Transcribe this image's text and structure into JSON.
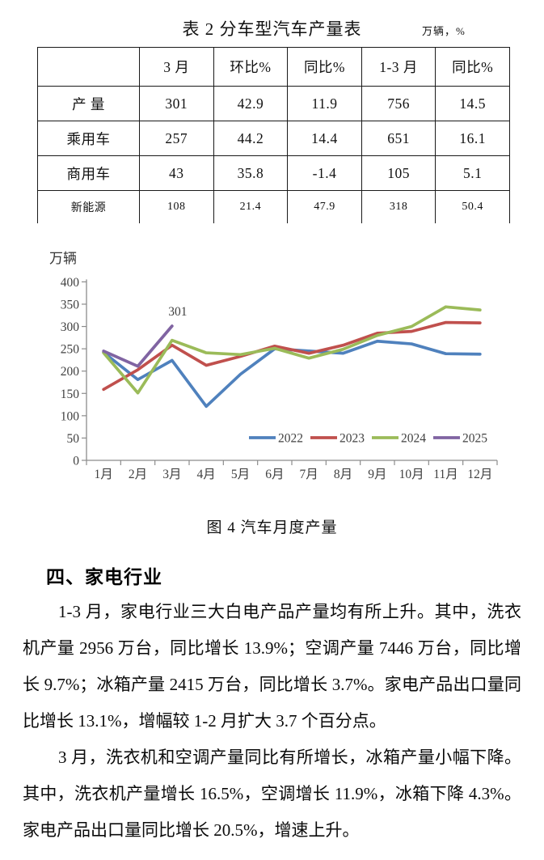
{
  "table": {
    "title": "表 2 分车型汽车产量表",
    "unit": "万辆，%",
    "columns": [
      "",
      "3 月",
      "环比%",
      "同比%",
      "1-3 月",
      "同比%"
    ],
    "rows": [
      {
        "label": "产 量",
        "values": [
          "301",
          "42.9",
          "11.9",
          "756",
          "14.5"
        ],
        "small": false
      },
      {
        "label": "乘用车",
        "values": [
          "257",
          "44.2",
          "14.4",
          "651",
          "16.1"
        ],
        "small": false
      },
      {
        "label": "商用车",
        "values": [
          "43",
          "35.8",
          "-1.4",
          "105",
          "5.1"
        ],
        "small": false
      },
      {
        "label": "新能源",
        "values": [
          "108",
          "21.4",
          "47.9",
          "318",
          "50.4"
        ],
        "small": true
      }
    ]
  },
  "chart_data": {
    "type": "line",
    "title": "",
    "unit_label": "万辆",
    "xlabel": "",
    "ylabel": "万辆",
    "categories": [
      "1月",
      "2月",
      "3月",
      "4月",
      "5月",
      "6月",
      "7月",
      "8月",
      "9月",
      "10月",
      "11月",
      "12月"
    ],
    "series": [
      {
        "name": "2022",
        "color": "#4F81BD",
        "values": [
          242,
          181,
          224,
          121,
          193,
          250,
          245,
          240,
          267,
          261,
          239,
          238
        ]
      },
      {
        "name": "2023",
        "color": "#C0504D",
        "values": [
          159,
          203,
          258,
          213,
          233,
          256,
          240,
          258,
          285,
          289,
          309,
          308
        ]
      },
      {
        "name": "2024",
        "color": "#9BBB59",
        "values": [
          241,
          151,
          269,
          241,
          237,
          251,
          229,
          249,
          280,
          300,
          344,
          337
        ]
      },
      {
        "name": "2025",
        "color": "#8064A2",
        "values": [
          245,
          211,
          301
        ]
      }
    ],
    "ylim": [
      0,
      400
    ],
    "ytick_step": 50,
    "grid": false,
    "legend_position": "bottom-inside",
    "annotation": {
      "text": "301",
      "series": "2025",
      "index": 2
    },
    "axis_color": "#8c8c8c",
    "label_color": "#404040"
  },
  "figure_caption": "图 4 汽车月度产量",
  "section": {
    "heading": "四、家电行业",
    "paragraphs": [
      "1-3 月，家电行业三大白电产品产量均有所上升。其中，洗衣机产量 2956 万台，同比增长 13.9%；空调产量 7446 万台，同比增长 9.7%；冰箱产量 2415 万台，同比增长 3.7%。家电产品出口量同比增长 13.1%，增幅较 1-2 月扩大 3.7 个百分点。",
      "3 月，洗衣机和空调产量同比有所增长，冰箱产量小幅下降。其中，洗衣机产量增长 16.5%，空调增长 11.9%，冰箱下降 4.3%。家电产品出口量同比增长 20.5%，增速上升。"
    ]
  }
}
